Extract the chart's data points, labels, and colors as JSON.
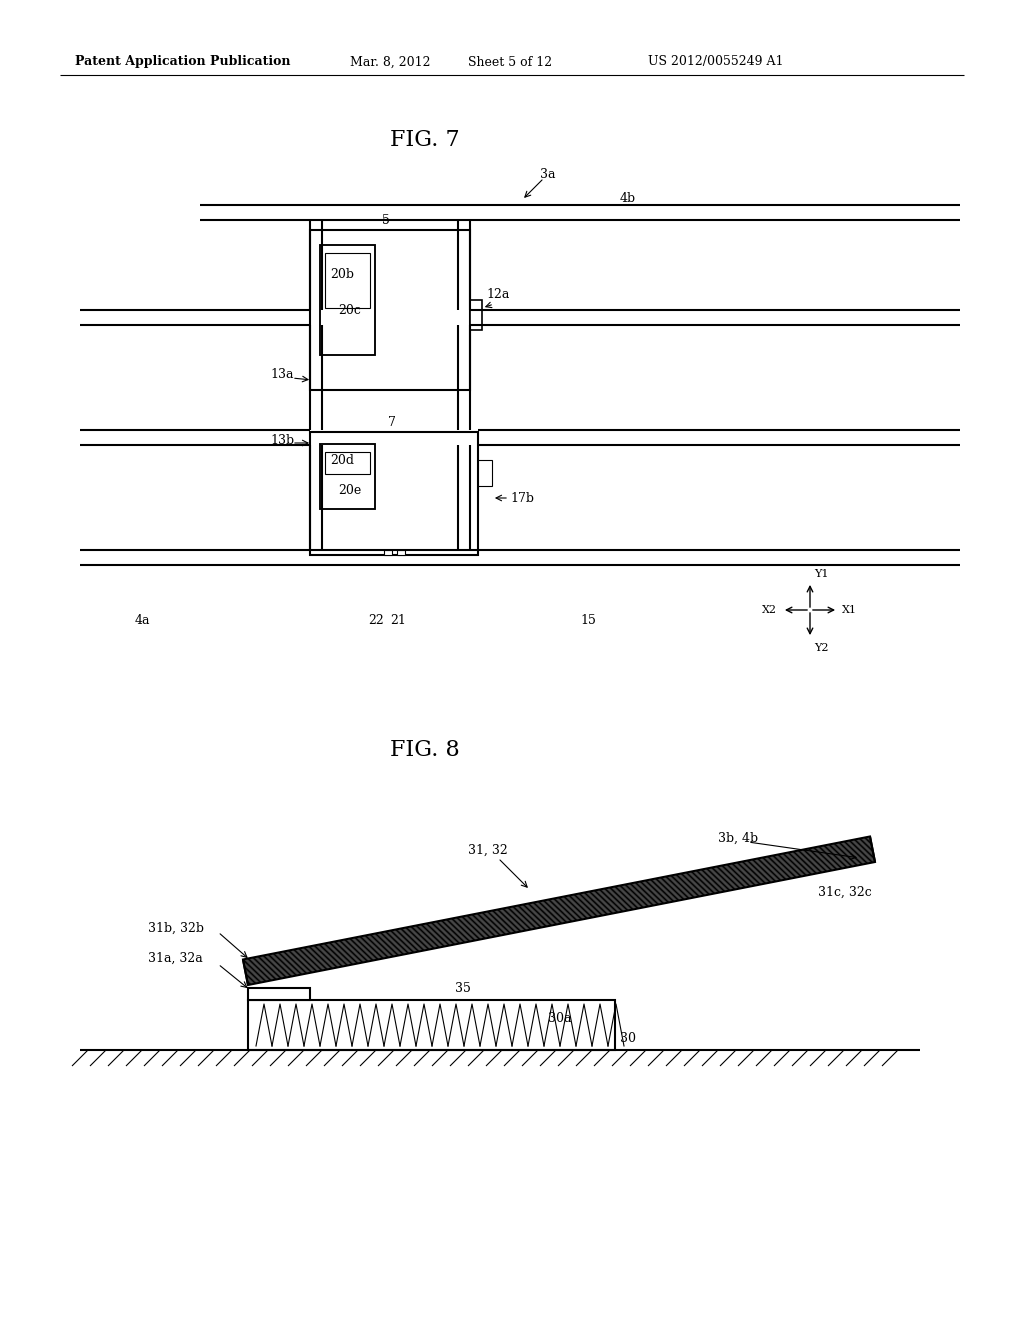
{
  "bg_color": "#ffffff",
  "header_text": "Patent Application Publication",
  "header_date": "Mar. 8, 2012",
  "header_sheet": "Sheet 5 of 12",
  "header_patent": "US 2012/0055249 A1",
  "fig7_title": "FIG. 7",
  "fig8_title": "FIG. 8",
  "line_color": "#000000",
  "lw": 1.5,
  "tlw": 0.8
}
